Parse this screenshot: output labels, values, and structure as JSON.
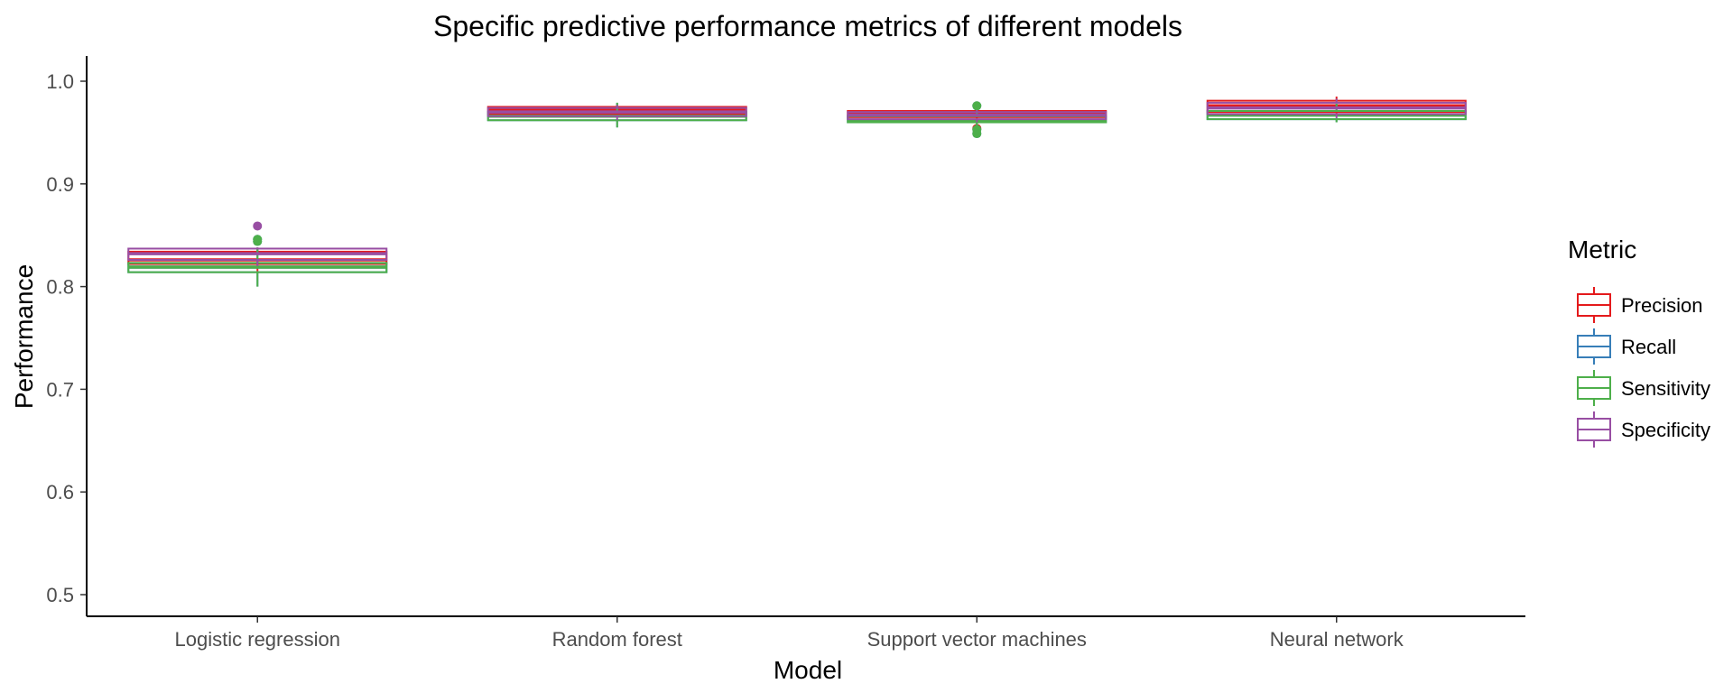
{
  "chart_data": {
    "type": "boxplot",
    "title": "Specific predictive performance metrics of different models",
    "xlabel": "Model",
    "ylabel": "Performance",
    "ylim": [
      0.5,
      1.0
    ],
    "yticks": [
      "0.5",
      "0.6",
      "0.7",
      "0.8",
      "0.9",
      "1.0"
    ],
    "grid": false,
    "legend": {
      "title": "Metric",
      "position": "right"
    },
    "categories": [
      "Logistic regression",
      "Random forest",
      "Support vector machines",
      "Neural network"
    ],
    "series": [
      {
        "name": "Precision",
        "color": "#E41A1C",
        "boxes": [
          {
            "q1": 0.822,
            "median": 0.826,
            "q3": 0.834,
            "whisker_low": 0.815,
            "whisker_high": 0.838,
            "outliers": []
          },
          {
            "q1": 0.968,
            "median": 0.972,
            "q3": 0.975,
            "whisker_low": 0.965,
            "whisker_high": 0.978,
            "outliers": []
          },
          {
            "q1": 0.965,
            "median": 0.968,
            "q3": 0.971,
            "whisker_low": 0.962,
            "whisker_high": 0.973,
            "outliers": [
              0.954
            ]
          },
          {
            "q1": 0.97,
            "median": 0.976,
            "q3": 0.981,
            "whisker_low": 0.966,
            "whisker_high": 0.985,
            "outliers": []
          }
        ]
      },
      {
        "name": "Recall",
        "color": "#377EB8",
        "boxes": [
          {
            "q1": 0.814,
            "median": 0.819,
            "q3": 0.823,
            "whisker_low": 0.8,
            "whisker_high": 0.838,
            "outliers": [
              0.846,
              0.844
            ]
          },
          {
            "q1": 0.962,
            "median": 0.966,
            "q3": 0.97,
            "whisker_low": 0.955,
            "whisker_high": 0.979,
            "outliers": []
          },
          {
            "q1": 0.96,
            "median": 0.962,
            "q3": 0.966,
            "whisker_low": 0.957,
            "whisker_high": 0.97,
            "outliers": [
              0.976,
              0.949,
              0.953
            ]
          },
          {
            "q1": 0.963,
            "median": 0.967,
            "q3": 0.971,
            "whisker_low": 0.96,
            "whisker_high": 0.978,
            "outliers": []
          }
        ]
      },
      {
        "name": "Sensitivity",
        "color": "#4DAF4A",
        "boxes": [
          {
            "q1": 0.814,
            "median": 0.819,
            "q3": 0.823,
            "whisker_low": 0.8,
            "whisker_high": 0.838,
            "outliers": [
              0.846,
              0.844
            ]
          },
          {
            "q1": 0.962,
            "median": 0.966,
            "q3": 0.97,
            "whisker_low": 0.955,
            "whisker_high": 0.979,
            "outliers": []
          },
          {
            "q1": 0.96,
            "median": 0.962,
            "q3": 0.966,
            "whisker_low": 0.957,
            "whisker_high": 0.97,
            "outliers": [
              0.976,
              0.949,
              0.953
            ]
          },
          {
            "q1": 0.963,
            "median": 0.967,
            "q3": 0.971,
            "whisker_low": 0.96,
            "whisker_high": 0.978,
            "outliers": []
          }
        ]
      },
      {
        "name": "Specificity",
        "color": "#984EA3",
        "boxes": [
          {
            "q1": 0.826,
            "median": 0.832,
            "q3": 0.837,
            "whisker_low": 0.82,
            "whisker_high": 0.838,
            "outliers": [
              0.859
            ]
          },
          {
            "q1": 0.966,
            "median": 0.97,
            "q3": 0.974,
            "whisker_low": 0.962,
            "whisker_high": 0.977,
            "outliers": []
          },
          {
            "q1": 0.963,
            "median": 0.967,
            "q3": 0.97,
            "whisker_low": 0.96,
            "whisker_high": 0.972,
            "outliers": []
          },
          {
            "q1": 0.968,
            "median": 0.974,
            "q3": 0.979,
            "whisker_low": 0.964,
            "whisker_high": 0.983,
            "outliers": []
          }
        ]
      }
    ]
  }
}
